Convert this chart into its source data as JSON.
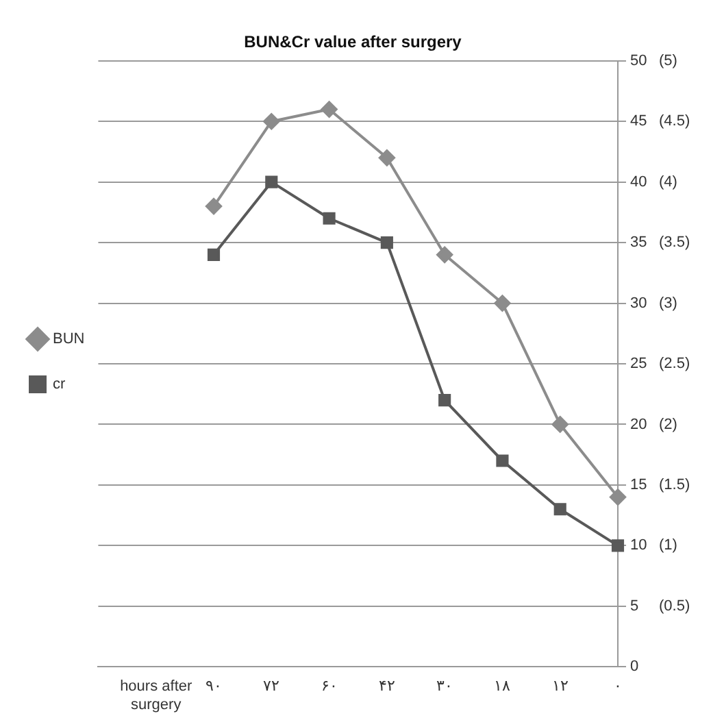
{
  "chart_data": {
    "type": "line",
    "title": "BUN&Cr value after surgery",
    "categories": [
      null,
      "hours after surgery",
      "۹۰",
      "۷۲",
      "۶۰",
      "۴۲",
      "۳۰",
      "۱۸",
      "۱۲",
      "۰"
    ],
    "series": [
      {
        "name": "BUN",
        "color": "#8c8c8c",
        "marker": "diamond",
        "values": [
          null,
          null,
          38,
          45,
          46,
          42,
          34,
          30,
          20,
          14
        ]
      },
      {
        "name": "cr",
        "color": "#595959",
        "marker": "square",
        "values": [
          null,
          null,
          34,
          40,
          37,
          35,
          22,
          17,
          13,
          10
        ]
      }
    ],
    "ylim": [
      0,
      50
    ],
    "yticks": [
      0,
      5,
      10,
      15,
      20,
      25,
      30,
      35,
      40,
      45,
      50
    ],
    "y2lim": [
      0,
      5
    ],
    "y2ticks": [
      {
        "value": 0.5,
        "label": "(0.5)"
      },
      {
        "value": 1,
        "label": "(1)"
      },
      {
        "value": 1.5,
        "label": "(1.5)"
      },
      {
        "value": 2,
        "label": "(2)"
      },
      {
        "value": 2.5,
        "label": "(2.5)"
      },
      {
        "value": 3,
        "label": "(3)"
      },
      {
        "value": 3.5,
        "label": "(3.5)"
      },
      {
        "value": 4,
        "label": "(4)"
      },
      {
        "value": 4.5,
        "label": "(4.5)"
      },
      {
        "value": 5,
        "label": "(5)"
      }
    ],
    "grid": "y",
    "legend": "left",
    "line_style": "solid"
  }
}
